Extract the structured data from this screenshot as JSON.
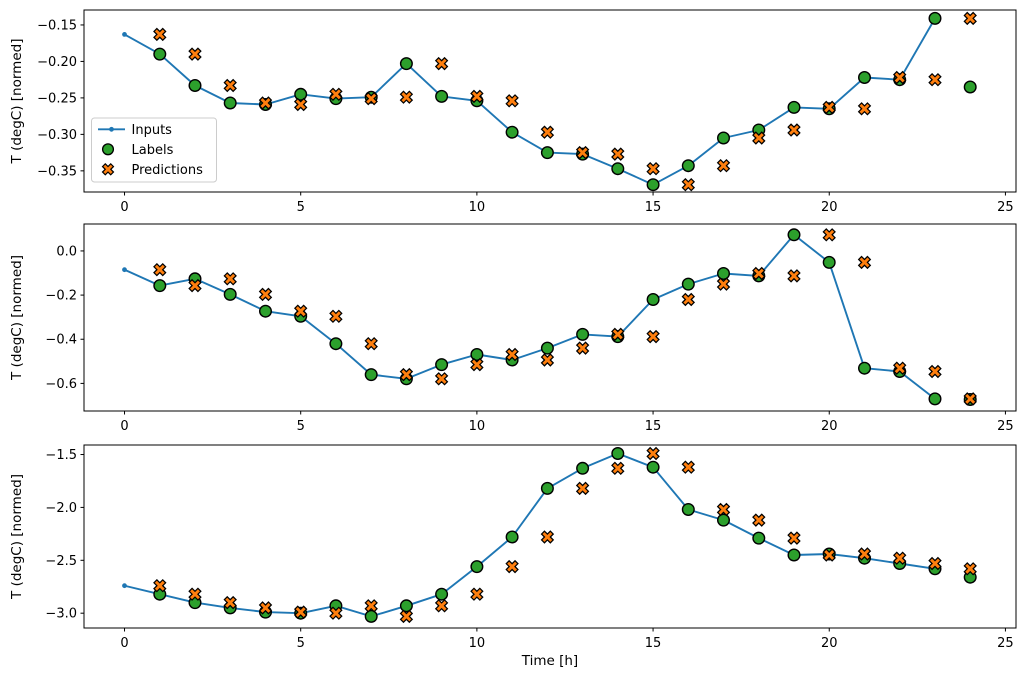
{
  "figure": {
    "background": "#ffffff",
    "xlabel": "Time [h]",
    "ylabel": "T (degC) [normed]",
    "x_ticks": [
      0,
      5,
      10,
      15,
      20,
      25
    ],
    "x_tick_labels": [
      "0",
      "5",
      "10",
      "15",
      "20",
      "25"
    ],
    "colors": {
      "inputs_line": "#1f77b4",
      "labels_marker": "#2ca02c",
      "predictions_marker": "#ff7f0e",
      "marker_edge": "#000000",
      "spine": "#000000",
      "legend_border": "#cccccc",
      "legend_background": "#ffffff",
      "text": "#000000"
    },
    "legend": {
      "location": "upper left of first subplot",
      "entries": [
        {
          "label": "Inputs",
          "marker": "line-with-dot",
          "color": "#1f77b4"
        },
        {
          "label": "Labels",
          "marker": "filled-circle",
          "color": "#2ca02c"
        },
        {
          "label": "Predictions",
          "marker": "filled-x",
          "color": "#ff7f0e"
        }
      ]
    }
  },
  "chart_data": [
    {
      "type": "line",
      "subplot": 1,
      "title": "",
      "xlabel": "",
      "ylabel": "T (degC) [normed]",
      "xlim": [
        -1.15,
        25.3
      ],
      "ylim": [
        -0.379,
        -0.1295
      ],
      "grid": false,
      "x_ticks": [
        0,
        5,
        10,
        15,
        20,
        25
      ],
      "x_tick_labels": [
        "0",
        "5",
        "10",
        "15",
        "20",
        "25"
      ],
      "y_ticks": [
        -0.15,
        -0.2,
        -0.25,
        -0.3,
        -0.35
      ],
      "y_tick_labels": [
        "−0.15",
        "−0.20",
        "−0.25",
        "−0.30",
        "−0.35"
      ],
      "show_legend": true,
      "series": [
        {
          "name": "Inputs",
          "style": "line",
          "marker": "dot",
          "color": "#1f77b4",
          "x": [
            0,
            1,
            2,
            3,
            4,
            5,
            6,
            7,
            8,
            9,
            10,
            11,
            12,
            13,
            14,
            15,
            16,
            17,
            18,
            19,
            20,
            21,
            22,
            23
          ],
          "values": [
            -0.163,
            -0.19,
            -0.233,
            -0.257,
            -0.259,
            -0.245,
            -0.251,
            -0.249,
            -0.203,
            -0.248,
            -0.254,
            -0.297,
            -0.325,
            -0.327,
            -0.347,
            -0.369,
            -0.343,
            -0.305,
            -0.294,
            -0.263,
            -0.265,
            -0.222,
            -0.225,
            -0.141
          ]
        },
        {
          "name": "Labels",
          "style": "scatter",
          "marker": "circle",
          "color": "#2ca02c",
          "x": [
            1,
            2,
            3,
            4,
            5,
            6,
            7,
            8,
            9,
            10,
            11,
            12,
            13,
            14,
            15,
            16,
            17,
            18,
            19,
            20,
            21,
            22,
            23,
            24
          ],
          "values": [
            -0.19,
            -0.233,
            -0.257,
            -0.259,
            -0.245,
            -0.251,
            -0.249,
            -0.203,
            -0.248,
            -0.254,
            -0.297,
            -0.325,
            -0.327,
            -0.347,
            -0.369,
            -0.343,
            -0.305,
            -0.294,
            -0.263,
            -0.265,
            -0.222,
            -0.225,
            -0.141,
            -0.235
          ]
        },
        {
          "name": "Predictions",
          "style": "scatter",
          "marker": "X",
          "color": "#ff7f0e",
          "x": [
            1,
            2,
            3,
            4,
            5,
            6,
            7,
            8,
            9,
            10,
            11,
            12,
            13,
            14,
            15,
            16,
            17,
            18,
            19,
            20,
            21,
            22,
            23,
            24
          ],
          "values": [
            -0.163,
            -0.19,
            -0.233,
            -0.257,
            -0.259,
            -0.245,
            -0.251,
            -0.249,
            -0.203,
            -0.248,
            -0.254,
            -0.297,
            -0.325,
            -0.327,
            -0.347,
            -0.369,
            -0.343,
            -0.305,
            -0.294,
            -0.263,
            -0.265,
            -0.222,
            -0.225,
            -0.141
          ]
        }
      ]
    },
    {
      "type": "line",
      "subplot": 2,
      "title": "",
      "xlabel": "",
      "ylabel": "T (degC) [normed]",
      "xlim": [
        -1.15,
        25.3
      ],
      "ylim": [
        -0.725,
        0.122
      ],
      "grid": false,
      "x_ticks": [
        0,
        5,
        10,
        15,
        20,
        25
      ],
      "x_tick_labels": [
        "0",
        "5",
        "10",
        "15",
        "20",
        "25"
      ],
      "y_ticks": [
        0.0,
        -0.2,
        -0.4,
        -0.6
      ],
      "y_tick_labels": [
        "0.0",
        "−0.2",
        "−0.4",
        "−0.6"
      ],
      "show_legend": false,
      "series": [
        {
          "name": "Inputs",
          "style": "line",
          "marker": "dot",
          "color": "#1f77b4",
          "x": [
            0,
            1,
            2,
            3,
            4,
            5,
            6,
            7,
            8,
            9,
            10,
            11,
            12,
            13,
            14,
            15,
            16,
            17,
            18,
            19,
            20,
            21,
            22,
            23
          ],
          "values": [
            -0.085,
            -0.157,
            -0.126,
            -0.197,
            -0.273,
            -0.296,
            -0.42,
            -0.56,
            -0.579,
            -0.515,
            -0.469,
            -0.494,
            -0.44,
            -0.378,
            -0.388,
            -0.22,
            -0.15,
            -0.102,
            -0.113,
            0.073,
            -0.052,
            -0.531,
            -0.546,
            -0.67
          ]
        },
        {
          "name": "Labels",
          "style": "scatter",
          "marker": "circle",
          "color": "#2ca02c",
          "x": [
            1,
            2,
            3,
            4,
            5,
            6,
            7,
            8,
            9,
            10,
            11,
            12,
            13,
            14,
            15,
            16,
            17,
            18,
            19,
            20,
            21,
            22,
            23,
            24
          ],
          "values": [
            -0.157,
            -0.126,
            -0.197,
            -0.273,
            -0.296,
            -0.42,
            -0.56,
            -0.579,
            -0.515,
            -0.469,
            -0.494,
            -0.44,
            -0.378,
            -0.388,
            -0.22,
            -0.15,
            -0.102,
            -0.113,
            0.073,
            -0.052,
            -0.531,
            -0.546,
            -0.67,
            -0.673
          ]
        },
        {
          "name": "Predictions",
          "style": "scatter",
          "marker": "X",
          "color": "#ff7f0e",
          "x": [
            1,
            2,
            3,
            4,
            5,
            6,
            7,
            8,
            9,
            10,
            11,
            12,
            13,
            14,
            15,
            16,
            17,
            18,
            19,
            20,
            21,
            22,
            23,
            24
          ],
          "values": [
            -0.085,
            -0.157,
            -0.126,
            -0.197,
            -0.273,
            -0.296,
            -0.42,
            -0.56,
            -0.579,
            -0.515,
            -0.469,
            -0.494,
            -0.44,
            -0.378,
            -0.388,
            -0.22,
            -0.15,
            -0.102,
            -0.113,
            0.073,
            -0.052,
            -0.531,
            -0.546,
            -0.67
          ]
        }
      ]
    },
    {
      "type": "line",
      "subplot": 3,
      "title": "",
      "xlabel": "Time [h]",
      "ylabel": "T (degC) [normed]",
      "xlim": [
        -1.15,
        25.3
      ],
      "ylim": [
        -3.14,
        -1.41
      ],
      "grid": false,
      "x_ticks": [
        0,
        5,
        10,
        15,
        20,
        25
      ],
      "x_tick_labels": [
        "0",
        "5",
        "10",
        "15",
        "20",
        "25"
      ],
      "y_ticks": [
        -1.5,
        -2.0,
        -2.5,
        -3.0
      ],
      "y_tick_labels": [
        "−1.5",
        "−2.0",
        "−2.5",
        "−3.0"
      ],
      "show_legend": false,
      "series": [
        {
          "name": "Inputs",
          "style": "line",
          "marker": "dot",
          "color": "#1f77b4",
          "x": [
            0,
            1,
            2,
            3,
            4,
            5,
            6,
            7,
            8,
            9,
            10,
            11,
            12,
            13,
            14,
            15,
            16,
            17,
            18,
            19,
            20,
            21,
            22,
            23
          ],
          "values": [
            -2.74,
            -2.82,
            -2.9,
            -2.95,
            -2.99,
            -3.0,
            -2.93,
            -3.03,
            -2.93,
            -2.82,
            -2.56,
            -2.28,
            -1.82,
            -1.63,
            -1.49,
            -1.62,
            -2.02,
            -2.12,
            -2.29,
            -2.45,
            -2.44,
            -2.48,
            -2.53,
            -2.58
          ]
        },
        {
          "name": "Labels",
          "style": "scatter",
          "marker": "circle",
          "color": "#2ca02c",
          "x": [
            1,
            2,
            3,
            4,
            5,
            6,
            7,
            8,
            9,
            10,
            11,
            12,
            13,
            14,
            15,
            16,
            17,
            18,
            19,
            20,
            21,
            22,
            23,
            24
          ],
          "values": [
            -2.82,
            -2.9,
            -2.95,
            -2.99,
            -3.0,
            -2.93,
            -3.03,
            -2.93,
            -2.82,
            -2.56,
            -2.28,
            -1.82,
            -1.63,
            -1.49,
            -1.62,
            -2.02,
            -2.12,
            -2.29,
            -2.45,
            -2.44,
            -2.48,
            -2.53,
            -2.58,
            -2.66
          ]
        },
        {
          "name": "Predictions",
          "style": "scatter",
          "marker": "X",
          "color": "#ff7f0e",
          "x": [
            1,
            2,
            3,
            4,
            5,
            6,
            7,
            8,
            9,
            10,
            11,
            12,
            13,
            14,
            15,
            16,
            17,
            18,
            19,
            20,
            21,
            22,
            23,
            24
          ],
          "values": [
            -2.74,
            -2.82,
            -2.9,
            -2.95,
            -2.99,
            -3.0,
            -2.93,
            -3.03,
            -2.93,
            -2.82,
            -2.56,
            -2.28,
            -1.82,
            -1.63,
            -1.49,
            -1.62,
            -2.02,
            -2.12,
            -2.29,
            -2.45,
            -2.44,
            -2.48,
            -2.53,
            -2.58
          ]
        }
      ]
    }
  ]
}
